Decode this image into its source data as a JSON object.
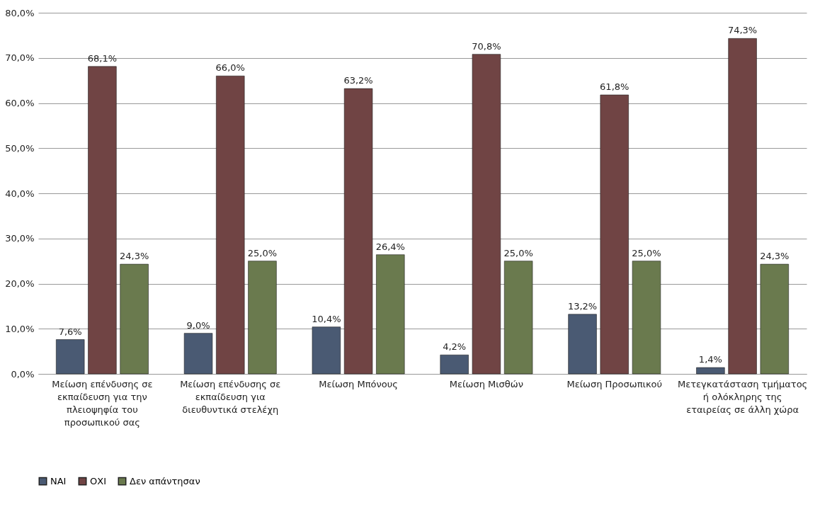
{
  "chart_data": {
    "type": "bar",
    "categories": [
      "Μείωση επένδυσης σε εκπαίδευση για την πλειοψηφία του προσωπικού σας",
      "Μείωση επένδυσης σε εκπαίδευση για διευθυντικά στελέχη",
      "Μείωση Μπόνους",
      "Μείωση Μισθών",
      "Μείωση Προσωπικού",
      "Μετεγκατάσταση τμήματος ή ολόκληρης της εταιρείας σε άλλη χώρα"
    ],
    "series": [
      {
        "name": "ΝΑΙ",
        "color": "#4a5a73",
        "values": [
          7.6,
          9.0,
          10.4,
          4.2,
          13.2,
          1.4
        ],
        "value_labels": [
          "7,6%",
          "9,0%",
          "10,4%",
          "4,2%",
          "13,2%",
          "1,4%"
        ]
      },
      {
        "name": "ΟΧΙ",
        "color": "#704444",
        "values": [
          68.1,
          66.0,
          63.2,
          70.8,
          61.8,
          74.3
        ],
        "value_labels": [
          "68,1%",
          "66,0%",
          "63,2%",
          "70,8%",
          "61,8%",
          "74,3%"
        ]
      },
      {
        "name": "Δεν απάντησαν",
        "color": "#6a7a4e",
        "values": [
          24.3,
          25.0,
          26.4,
          25.0,
          25.0,
          24.3
        ],
        "value_labels": [
          "24,3%",
          "25,0%",
          "26,4%",
          "25,0%",
          "25,0%",
          "24,3%"
        ]
      }
    ],
    "ylim": [
      0,
      80
    ],
    "yticks": [
      {
        "value": 0,
        "label": "0,0%"
      },
      {
        "value": 10,
        "label": "10,0%"
      },
      {
        "value": 20,
        "label": "20,0%"
      },
      {
        "value": 30,
        "label": "30,0%"
      },
      {
        "value": 40,
        "label": "40,0%"
      },
      {
        "value": 50,
        "label": "50,0%"
      },
      {
        "value": 60,
        "label": "60,0%"
      },
      {
        "value": 70,
        "label": "70,0%"
      },
      {
        "value": 80,
        "label": "80,0%"
      }
    ],
    "grid": "y",
    "legend": "bottom"
  }
}
